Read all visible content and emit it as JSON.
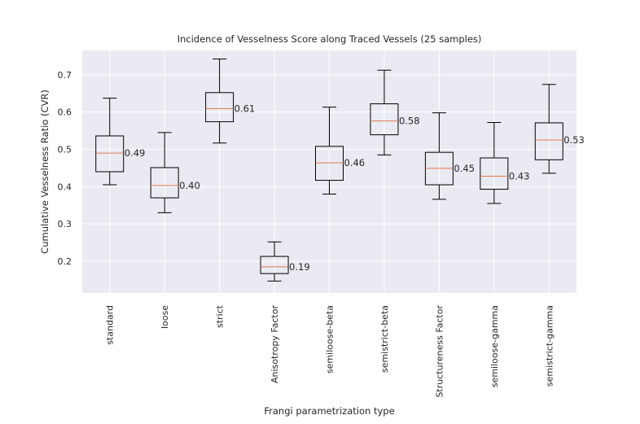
{
  "chart_data": {
    "type": "box",
    "title": "Incidence of Vesselness Score along Traced Vessels (25 samples)",
    "xlabel": "Frangi parametrization type",
    "ylabel": "Cumulative Vesselness Ratio (CVR)",
    "ylim": [
      0.115,
      0.765
    ],
    "yticks": [
      0.2,
      0.3,
      0.4,
      0.5,
      0.6,
      0.7
    ],
    "ytick_labels": [
      "0.2",
      "0.3",
      "0.4",
      "0.5",
      "0.6",
      "0.7"
    ],
    "grid": true,
    "colors": {
      "plot_background": "#eaeaf2",
      "grid": "#ffffff",
      "box": "#000000",
      "median": "#e07b4f",
      "text": "#262626"
    },
    "categories": [
      "standard",
      "loose",
      "strict",
      "Anisotropy Factor",
      "semiloose-beta",
      "semistrict-beta",
      "Structureness Factor",
      "semiloose-gamma",
      "semistrict-gamma"
    ],
    "boxes": [
      {
        "whislo": 0.405,
        "q1": 0.44,
        "med": 0.49,
        "q3": 0.536,
        "whishi": 0.637
      },
      {
        "whislo": 0.33,
        "q1": 0.37,
        "med": 0.403,
        "q3": 0.451,
        "whishi": 0.545
      },
      {
        "whislo": 0.517,
        "q1": 0.574,
        "med": 0.609,
        "q3": 0.652,
        "whishi": 0.742
      },
      {
        "whislo": 0.147,
        "q1": 0.167,
        "med": 0.185,
        "q3": 0.213,
        "whishi": 0.252
      },
      {
        "whislo": 0.38,
        "q1": 0.417,
        "med": 0.464,
        "q3": 0.508,
        "whishi": 0.613
      },
      {
        "whislo": 0.485,
        "q1": 0.539,
        "med": 0.576,
        "q3": 0.622,
        "whishi": 0.712
      },
      {
        "whislo": 0.366,
        "q1": 0.405,
        "med": 0.449,
        "q3": 0.492,
        "whishi": 0.598
      },
      {
        "whislo": 0.355,
        "q1": 0.393,
        "med": 0.428,
        "q3": 0.477,
        "whishi": 0.572
      },
      {
        "whislo": 0.436,
        "q1": 0.472,
        "med": 0.525,
        "q3": 0.571,
        "whishi": 0.674
      }
    ],
    "median_labels": [
      "0.49",
      "0.40",
      "0.61",
      "0.19",
      "0.46",
      "0.58",
      "0.45",
      "0.43",
      "0.53"
    ]
  }
}
